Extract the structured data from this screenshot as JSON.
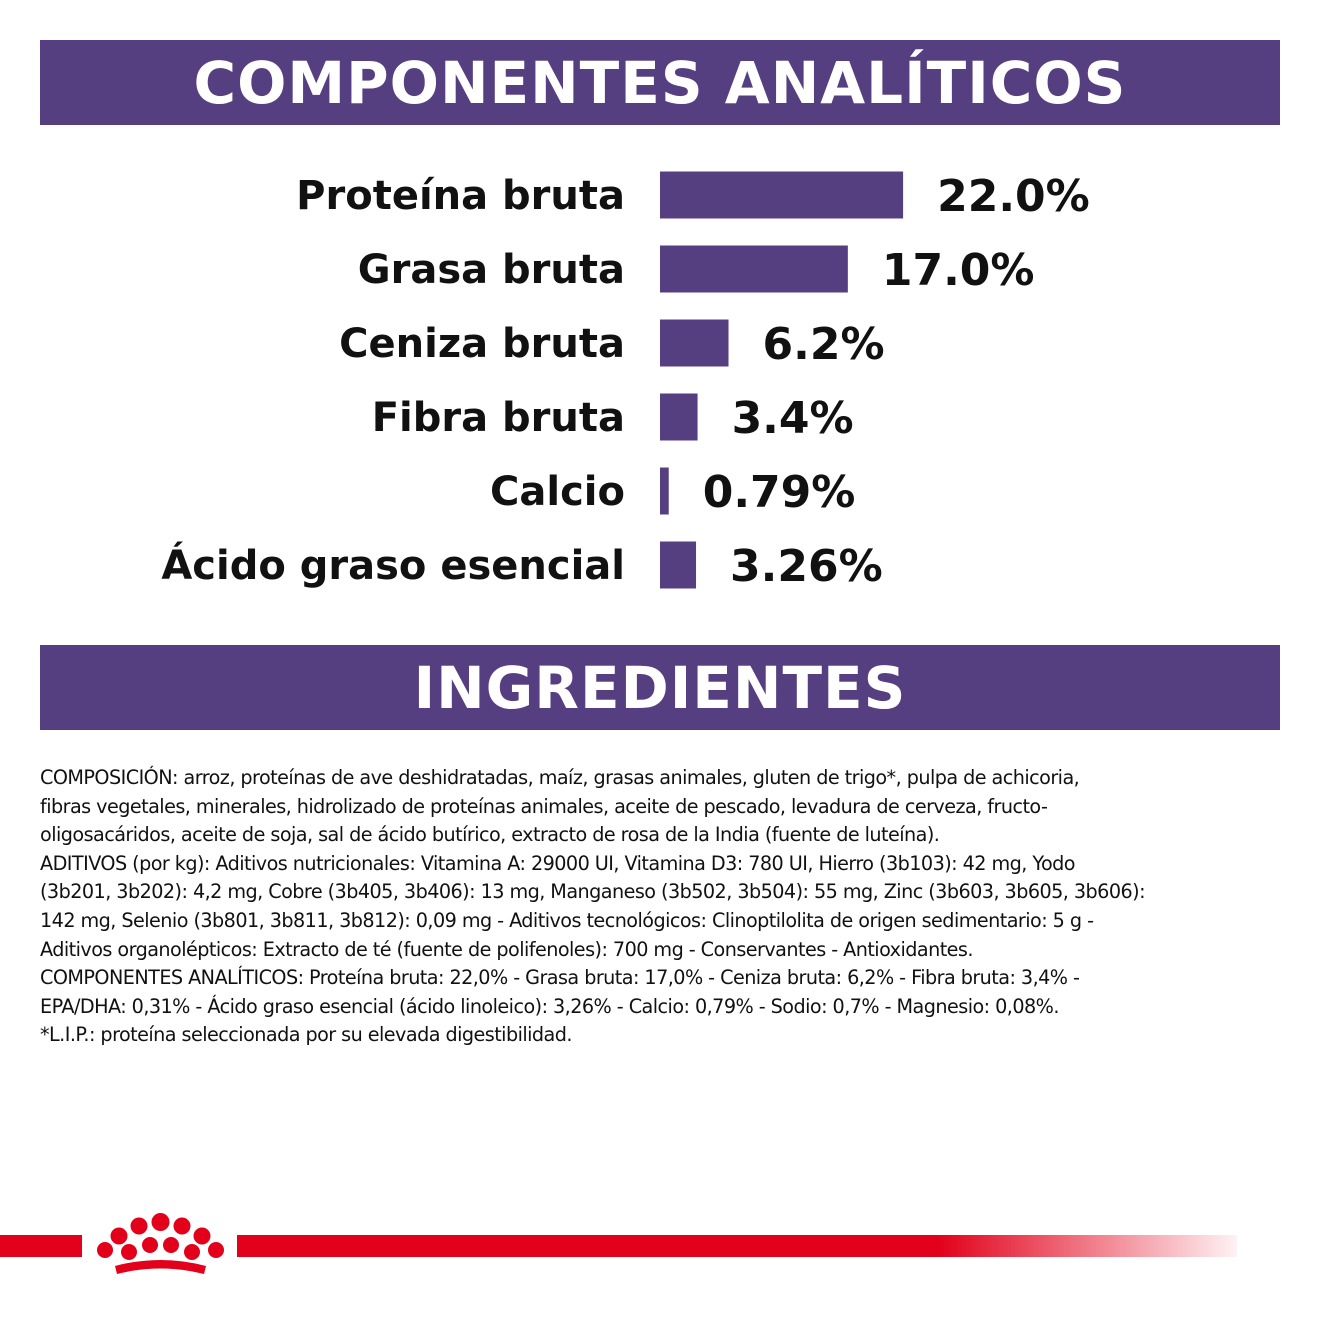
{
  "header": {
    "title": "COMPONENTES ANALÍTICOS"
  },
  "chart_data": {
    "type": "bar",
    "orientation": "horizontal",
    "categories": [
      "Proteína bruta",
      "Grasa bruta",
      "Ceniza bruta",
      "Fibra bruta",
      "Calcio",
      "Ácido graso esencial"
    ],
    "values": [
      22.0,
      17.0,
      6.2,
      3.4,
      0.79,
      3.26
    ],
    "value_labels": [
      "22.0%",
      "17.0%",
      "6.2%",
      "3.4%",
      "0.79%",
      "3.26%"
    ],
    "bar_color": "#553f80"
  },
  "ingredients": {
    "title": "INGREDIENTES",
    "text": "COMPOSICIÓN: arroz, proteínas de ave deshidratadas, maíz, grasas animales, gluten de trigo*, pulpa de achicoria,\nfibras vegetales, minerales, hidrolizado de proteínas animales, aceite de pescado, levadura de cerveza, fructo-\noligosacáridos, aceite de soja, sal de ácido butírico, extracto de rosa de la India (fuente de luteína).\nADITIVOS (por kg): Aditivos nutricionales: Vitamina A: 29000 UI, Vitamina D3: 780 UI, Hierro (3b103): 42 mg, Yodo\n(3b201, 3b202): 4,2 mg, Cobre (3b405, 3b406): 13 mg, Manganeso (3b502, 3b504): 55 mg, Zinc (3b603, 3b605, 3b606):\n142 mg, Selenio (3b801, 3b811, 3b812): 0,09 mg - Aditivos tecnológicos: Clinoptilolita de origen sedimentario: 5 g -\nAditivos organolépticos: Extracto de té (fuente de polifenoles): 700 mg - Conservantes - Antioxidantes.\nCOMPONENTES ANALÍTICOS: Proteína bruta: 22,0% - Grasa bruta: 17,0% - Ceniza bruta: 6,2% - Fibra bruta: 3,4% -\nEPA/DHA: 0,31% - Ácido graso esencial (ácido linoleico): 3,26% - Calcio: 0,79% - Sodio: 0,7% - Magnesio: 0,08%.\n*L.I.P.: proteína seleccionada por su elevada digestibilidad."
  },
  "brand": {
    "logo_icon": "royal-canin-crown-icon",
    "accent_color": "#e2001a"
  }
}
